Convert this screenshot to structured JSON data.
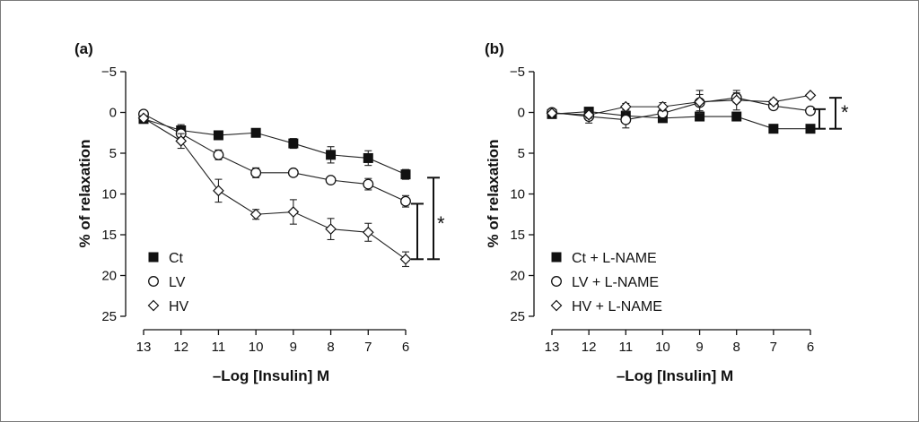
{
  "chart_data": [
    {
      "type": "line",
      "panel_label": "(a)",
      "xlabel": "–Log [Insulin] M",
      "ylabel": "% of relaxation",
      "x": [
        13,
        12,
        11,
        10,
        9,
        8,
        7,
        6
      ],
      "x_ticks": [
        "13",
        "12",
        "11",
        "10",
        "9",
        "8",
        "7",
        "6"
      ],
      "y_ticks": [
        "−5",
        "0",
        "5",
        "10",
        "15",
        "20",
        "25"
      ],
      "xlim": [
        13,
        6
      ],
      "ylim": [
        -5,
        25
      ],
      "y_inverted": true,
      "grid": false,
      "legend_position": "bottom-left",
      "series": [
        {
          "name": "Ct",
          "marker": "square-filled",
          "values": [
            0.8,
            2.2,
            2.8,
            2.5,
            3.8,
            5.2,
            5.6,
            7.6
          ],
          "errors": [
            0.3,
            0.7,
            0.4,
            0.3,
            0.6,
            1.0,
            0.9,
            0.6
          ]
        },
        {
          "name": "LV",
          "marker": "circle-open",
          "values": [
            0.2,
            2.6,
            5.2,
            7.4,
            7.4,
            8.3,
            8.8,
            10.9
          ],
          "errors": [
            0.2,
            0.5,
            0.6,
            0.6,
            0.4,
            0.4,
            0.7,
            0.7
          ]
        },
        {
          "name": "HV",
          "marker": "diamond-open",
          "values": [
            0.7,
            3.5,
            9.6,
            12.5,
            12.2,
            14.3,
            14.7,
            18.0
          ],
          "errors": [
            0.3,
            0.9,
            1.4,
            0.6,
            1.5,
            1.3,
            1.1,
            0.9
          ]
        }
      ],
      "annotations": [
        {
          "text": "*"
        }
      ]
    },
    {
      "type": "line",
      "panel_label": "(b)",
      "xlabel": "–Log [Insulin] M",
      "ylabel": "% of relaxation",
      "x": [
        13,
        12,
        11,
        10,
        9,
        8,
        7,
        6
      ],
      "x_ticks": [
        "13",
        "12",
        "11",
        "10",
        "9",
        "8",
        "7",
        "6"
      ],
      "y_ticks": [
        "−5",
        "0",
        "5",
        "10",
        "15",
        "20",
        "25"
      ],
      "xlim": [
        13,
        6
      ],
      "ylim": [
        -5,
        25
      ],
      "y_inverted": true,
      "grid": false,
      "legend_position": "bottom-left",
      "series": [
        {
          "name": "Ct + L-NAME",
          "marker": "square-filled",
          "values": [
            0.2,
            -0.1,
            0.4,
            0.7,
            0.5,
            0.5,
            2.0,
            2.0
          ],
          "errors": [
            0.2,
            0.2,
            0.3,
            0.4,
            0.3,
            0.3,
            0.2,
            0.2
          ]
        },
        {
          "name": "LV + L-NAME",
          "marker": "circle-open",
          "values": [
            0.0,
            0.5,
            0.9,
            0.1,
            -1.2,
            -1.8,
            -0.8,
            -0.2
          ],
          "errors": [
            0.2,
            0.8,
            1.0,
            0.6,
            1.0,
            0.6,
            0.4,
            0.2
          ]
        },
        {
          "name": "HV + L-NAME",
          "marker": "diamond-open",
          "values": [
            0.1,
            0.3,
            -0.7,
            -0.7,
            -1.3,
            -1.5,
            -1.3,
            -2.1
          ],
          "errors": [
            0.2,
            0.4,
            0.4,
            0.5,
            1.4,
            1.2,
            0.3,
            0.2
          ]
        }
      ],
      "annotations": [
        {
          "text": "*"
        }
      ]
    }
  ]
}
